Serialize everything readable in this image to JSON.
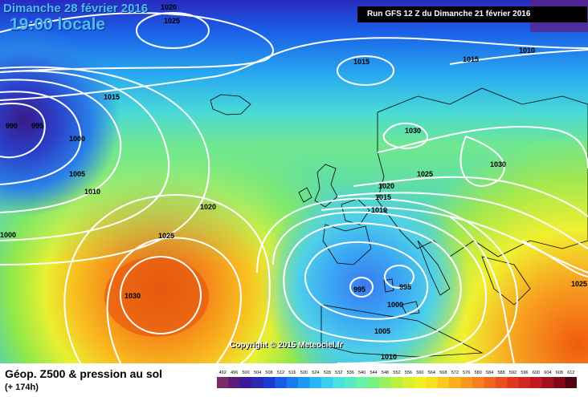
{
  "header": {
    "date": "Dimanche 28 février 2016",
    "time": "19:00 locale",
    "run": "Run GFS 12 Z du Dimanche 21 février 2016"
  },
  "copyright": "Copyright © 2015 Meteociel.fr",
  "footer": {
    "title": "Géop. Z500 & pression au sol",
    "range": "(+ 174h)"
  },
  "scale": {
    "values": [
      "492",
      "496",
      "500",
      "504",
      "508",
      "512",
      "516",
      "520",
      "524",
      "528",
      "532",
      "536",
      "540",
      "544",
      "548",
      "552",
      "556",
      "560",
      "564",
      "568",
      "572",
      "576",
      "580",
      "584",
      "588",
      "592",
      "596",
      "600",
      "604",
      "608",
      "612"
    ],
    "colors": [
      "#7a2a6a",
      "#5a1a7a",
      "#3a1a9a",
      "#2a2ab0",
      "#1a3ad0",
      "#1a5ae8",
      "#1a7af0",
      "#1a9af5",
      "#2ab5f5",
      "#3ad0f0",
      "#4ae0e0",
      "#5ae8c8",
      "#6af0a8",
      "#7af080",
      "#9af060",
      "#baf040",
      "#d8f030",
      "#f0f020",
      "#f8e020",
      "#f8c820",
      "#f8b020",
      "#f89820",
      "#f88020",
      "#f06820",
      "#e85020",
      "#e03820",
      "#d02820",
      "#c01a20",
      "#a01020",
      "#800818",
      "#500410"
    ]
  },
  "isobars": [
    {
      "label": "1020"
    },
    {
      "label": "1025"
    },
    {
      "label": "1015"
    },
    {
      "label": "990"
    },
    {
      "label": "995"
    },
    {
      "label": "1000"
    },
    {
      "label": "1005"
    },
    {
      "label": "1010"
    },
    {
      "label": "1020"
    },
    {
      "label": "1025"
    },
    {
      "label": "1030"
    },
    {
      "label": "1015"
    },
    {
      "label": "1015"
    },
    {
      "label": "1010"
    },
    {
      "label": "1030"
    },
    {
      "label": "1025"
    },
    {
      "label": "1030"
    },
    {
      "label": "1020"
    },
    {
      "label": "1015"
    },
    {
      "label": "1010"
    },
    {
      "label": "995"
    },
    {
      "label": "995"
    },
    {
      "label": "1000"
    },
    {
      "label": "1005"
    },
    {
      "label": "1010"
    },
    {
      "label": "1025"
    },
    {
      "label": "1000"
    }
  ]
}
